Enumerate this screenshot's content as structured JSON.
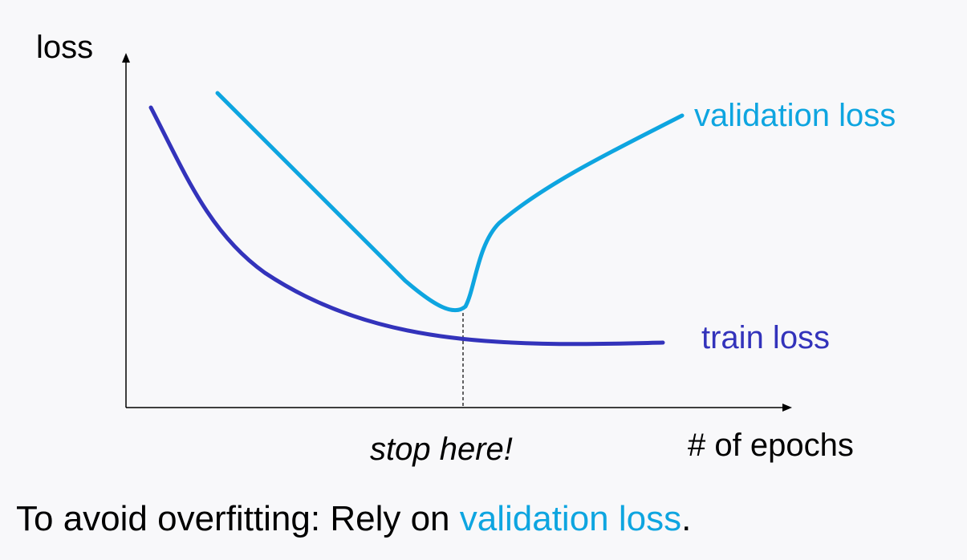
{
  "diagram": {
    "y_axis_label": "loss",
    "x_axis_label": "# of epochs",
    "stop_marker_label": "stop here!",
    "validation_curve_label": "validation loss",
    "train_curve_label": "train loss"
  },
  "caption": {
    "prefix": "To avoid overfitting: Rely on ",
    "highlight": "validation loss",
    "suffix": "."
  },
  "colors": {
    "validation": "#0ea5e0",
    "train": "#3333bb",
    "background": "#f8f8fa"
  }
}
